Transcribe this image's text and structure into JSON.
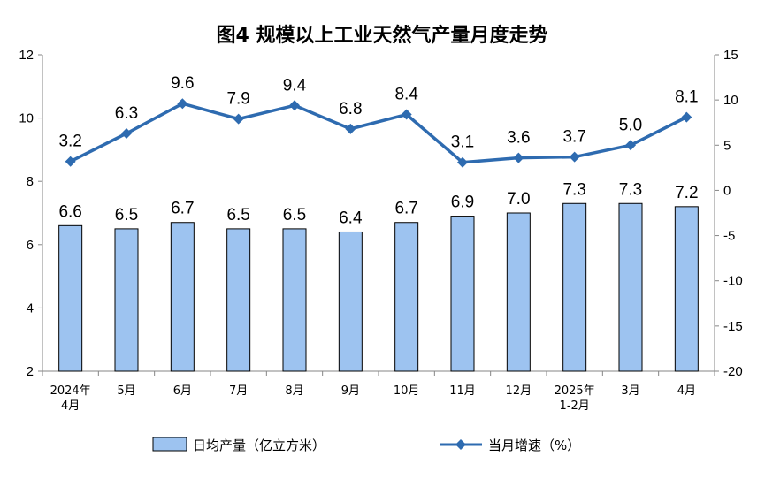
{
  "chart_data": {
    "type": "bar+line",
    "title": "图4  规模以上工业天然气产量月度走势",
    "categories": [
      [
        "2024年",
        "4月"
      ],
      [
        "5月"
      ],
      [
        "6月"
      ],
      [
        "7月"
      ],
      [
        "8月"
      ],
      [
        "9月"
      ],
      [
        "10月"
      ],
      [
        "11月"
      ],
      [
        "12月"
      ],
      [
        "2025年",
        "1-2月"
      ],
      [
        "3月"
      ],
      [
        "4月"
      ]
    ],
    "series": [
      {
        "name": "日均产量（亿立方米）",
        "type": "bar",
        "axis": "left",
        "color": "#9DC3F0",
        "values": [
          6.6,
          6.5,
          6.7,
          6.5,
          6.5,
          6.4,
          6.7,
          6.9,
          7.0,
          7.3,
          7.3,
          7.2
        ],
        "labels": [
          "6.6",
          "6.5",
          "6.7",
          "6.5",
          "6.5",
          "6.4",
          "6.7",
          "6.9",
          "7.0",
          "7.3",
          "7.3",
          "7.2"
        ]
      },
      {
        "name": "当月增速（%）",
        "type": "line",
        "axis": "right",
        "color": "#2E6BB0",
        "values": [
          3.2,
          6.3,
          9.6,
          7.9,
          9.4,
          6.8,
          8.4,
          3.1,
          3.6,
          3.7,
          5.0,
          8.1
        ],
        "labels": [
          "3.2",
          "6.3",
          "9.6",
          "7.9",
          "9.4",
          "6.8",
          "8.4",
          "3.1",
          "3.6",
          "3.7",
          "5.0",
          "8.1"
        ]
      }
    ],
    "y_left": {
      "min": 2,
      "max": 12,
      "ticks": [
        "2",
        "4",
        "6",
        "8",
        "10",
        "12"
      ]
    },
    "y_right": {
      "min": -20,
      "max": 15,
      "ticks": [
        "-20",
        "-15",
        "-10",
        "-5",
        "0",
        "5",
        "10",
        "15"
      ]
    },
    "grid": false,
    "legend_position": "bottom"
  }
}
